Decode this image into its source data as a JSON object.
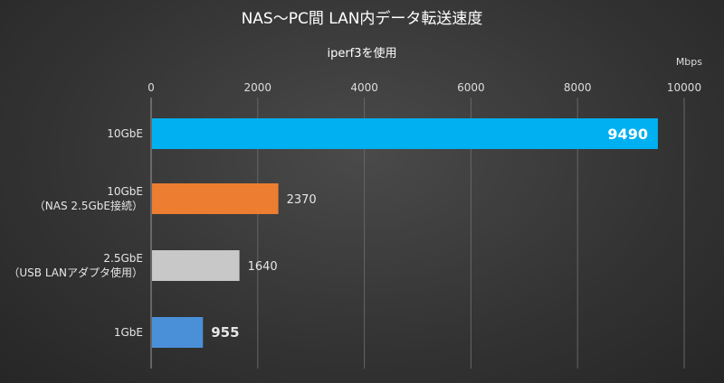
{
  "chart_data": {
    "type": "bar",
    "orientation": "horizontal",
    "title": "NAS～PC間 LAN内データ転送速度",
    "subtitle": "iperf3を使用",
    "unit": "Mbps",
    "xlim": [
      0,
      10000
    ],
    "ticks": [
      0,
      2000,
      4000,
      6000,
      8000,
      10000
    ],
    "grid": true,
    "categories": [
      [
        "10GbE"
      ],
      [
        "10GbE",
        "（NAS 2.5GbE接続）"
      ],
      [
        "2.5GbE",
        "（USB LANアダプタ使用）"
      ],
      [
        "1GbE"
      ]
    ],
    "values": [
      9490,
      2370,
      1640,
      955
    ],
    "colors": [
      "#00b0f0",
      "#ed7d31",
      "#c8c8c8",
      "#4a90d9"
    ]
  }
}
